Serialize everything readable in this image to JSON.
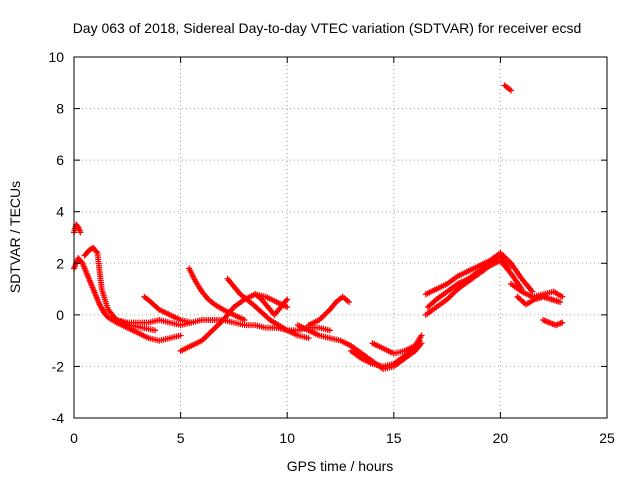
{
  "chart_data": {
    "type": "scatter",
    "title": "Day 063 of 2018, Sidereal Day-to-day VTEC variation (SDTVAR) for receiver ecsd",
    "xlabel": "GPS time / hours",
    "ylabel": "SDTVAR / TECUs",
    "xlim": [
      0,
      25
    ],
    "ylim": [
      -4,
      10
    ],
    "xticks": [
      0,
      5,
      10,
      15,
      20,
      25
    ],
    "yticks": [
      -4,
      -2,
      0,
      2,
      4,
      6,
      8,
      10
    ],
    "grid": true,
    "marker": "+",
    "color": "#ff0000",
    "series": [
      {
        "name": "arc-early-high",
        "x": [
          0.0,
          0.1,
          0.2,
          0.3
        ],
        "y": [
          3.2,
          3.5,
          3.4,
          3.2
        ]
      },
      {
        "name": "arc-start",
        "x": [
          0.0,
          0.2,
          0.4,
          0.6,
          0.8,
          1.0,
          1.2,
          1.4,
          1.6,
          2.0,
          2.5,
          3.0,
          3.5,
          4.0,
          4.5,
          5.0
        ],
        "y": [
          1.8,
          2.2,
          2.0,
          1.6,
          1.2,
          0.8,
          0.4,
          0.1,
          -0.1,
          -0.3,
          -0.5,
          -0.7,
          -0.9,
          -1.0,
          -0.9,
          -0.8
        ]
      },
      {
        "name": "arc-start-b",
        "x": [
          0.5,
          0.7,
          0.9,
          1.1,
          1.3,
          1.6,
          2.0,
          2.6,
          3.2,
          3.8
        ],
        "y": [
          2.3,
          2.5,
          2.6,
          2.4,
          1.0,
          0.2,
          -0.2,
          -0.4,
          -0.5,
          -0.6
        ]
      },
      {
        "name": "arc-mid-1",
        "x": [
          2.0,
          2.5,
          3.0,
          3.5,
          4.0,
          4.5,
          5.0,
          5.5,
          6.0,
          6.5,
          7.0,
          7.5,
          8.0,
          8.5,
          9.0,
          9.5,
          10.0,
          10.5,
          11.0,
          11.5,
          12.0
        ],
        "y": [
          -0.2,
          -0.3,
          -0.3,
          -0.3,
          -0.2,
          -0.3,
          -0.4,
          -0.3,
          -0.2,
          -0.2,
          -0.2,
          -0.3,
          -0.4,
          -0.4,
          -0.5,
          -0.5,
          -0.6,
          -0.6,
          -0.5,
          -0.5,
          -0.6
        ]
      },
      {
        "name": "arc-mid-2",
        "x": [
          3.3,
          3.6,
          4.0,
          4.5,
          5.0,
          5.5
        ],
        "y": [
          0.7,
          0.5,
          0.2,
          0.0,
          -0.2,
          -0.3
        ]
      },
      {
        "name": "arc-mid-3",
        "x": [
          5.4,
          5.7,
          6.0,
          6.3,
          6.6,
          7.0,
          7.5,
          8.0
        ],
        "y": [
          1.8,
          1.3,
          0.9,
          0.6,
          0.4,
          0.2,
          0.0,
          -0.2
        ]
      },
      {
        "name": "arc-mid-4",
        "x": [
          5.0,
          5.5,
          6.0,
          6.5,
          7.0,
          7.5,
          8.0,
          8.5,
          9.0,
          9.5,
          10.0
        ],
        "y": [
          -1.4,
          -1.2,
          -1.0,
          -0.6,
          -0.2,
          0.3,
          0.6,
          0.8,
          0.7,
          0.5,
          0.3
        ]
      },
      {
        "name": "arc-mid-5",
        "x": [
          7.2,
          7.5,
          7.8,
          8.1,
          8.4,
          8.8,
          9.2,
          9.6,
          10.0,
          10.5,
          11.0
        ],
        "y": [
          1.4,
          1.1,
          0.8,
          0.6,
          0.4,
          0.1,
          -0.2,
          -0.4,
          -0.6,
          -0.8,
          -0.9
        ]
      },
      {
        "name": "arc-mid-6",
        "x": [
          8.5,
          8.8,
          9.1,
          9.4,
          9.7,
          10.0
        ],
        "y": [
          0.8,
          0.6,
          0.3,
          0.0,
          0.3,
          0.6
        ]
      },
      {
        "name": "arc-mid-7",
        "x": [
          11.0,
          11.5,
          12.0,
          12.3,
          12.6,
          12.9
        ],
        "y": [
          -0.4,
          -0.2,
          0.2,
          0.5,
          0.7,
          0.5
        ]
      },
      {
        "name": "arc-afternoon",
        "x": [
          10.5,
          11.0,
          11.5,
          12.0,
          12.5,
          13.0,
          13.5,
          14.0,
          14.5,
          15.0,
          15.5,
          16.0,
          16.3
        ],
        "y": [
          -0.4,
          -0.6,
          -0.8,
          -0.9,
          -1.0,
          -1.2,
          -1.5,
          -1.8,
          -2.1,
          -2.0,
          -1.7,
          -1.4,
          -1.1
        ]
      },
      {
        "name": "arc-afternoon-b",
        "x": [
          13.0,
          13.5,
          14.0,
          14.5,
          15.0,
          15.5,
          16.0,
          16.2
        ],
        "y": [
          -1.4,
          -1.7,
          -1.9,
          -2.0,
          -1.9,
          -1.6,
          -1.3,
          -1.0
        ]
      },
      {
        "name": "arc-afternoon-c",
        "x": [
          14.0,
          14.5,
          15.0,
          15.5,
          16.0,
          16.3
        ],
        "y": [
          -1.1,
          -1.3,
          -1.5,
          -1.4,
          -1.2,
          -0.8
        ]
      },
      {
        "name": "arc-rise",
        "x": [
          16.5,
          17.0,
          17.5,
          18.0,
          18.5,
          19.0,
          19.5,
          20.0,
          20.5,
          21.0
        ],
        "y": [
          0.0,
          0.3,
          0.6,
          1.0,
          1.3,
          1.6,
          1.9,
          2.1,
          1.6,
          1.0
        ]
      },
      {
        "name": "arc-rise-b",
        "x": [
          16.5,
          17.0,
          17.5,
          18.0,
          18.5,
          19.0,
          19.5,
          20.0,
          20.5,
          21.0,
          21.5
        ],
        "y": [
          0.8,
          1.0,
          1.2,
          1.5,
          1.7,
          1.9,
          2.1,
          2.4,
          2.0,
          1.4,
          0.9
        ]
      },
      {
        "name": "arc-rise-c",
        "x": [
          16.6,
          17.0,
          17.5,
          18.0,
          18.5,
          19.0,
          19.5,
          20.0,
          20.4
        ],
        "y": [
          0.3,
          0.6,
          0.9,
          1.2,
          1.4,
          1.7,
          2.0,
          2.3,
          1.8
        ]
      },
      {
        "name": "arc-late",
        "x": [
          20.5,
          21.0,
          21.5,
          22.0,
          22.5,
          22.9
        ],
        "y": [
          1.2,
          0.9,
          0.7,
          0.8,
          0.9,
          0.7
        ]
      },
      {
        "name": "arc-late-b",
        "x": [
          20.8,
          21.2,
          21.6,
          22.0,
          22.4,
          22.8
        ],
        "y": [
          0.7,
          0.4,
          0.6,
          0.7,
          0.6,
          0.5
        ]
      },
      {
        "name": "arc-late-c",
        "x": [
          22.0,
          22.3,
          22.6,
          22.9
        ],
        "y": [
          -0.2,
          -0.3,
          -0.4,
          -0.3
        ]
      },
      {
        "name": "arc-outlier",
        "x": [
          20.2,
          20.35,
          20.5
        ],
        "y": [
          8.9,
          8.8,
          8.7
        ]
      }
    ]
  }
}
